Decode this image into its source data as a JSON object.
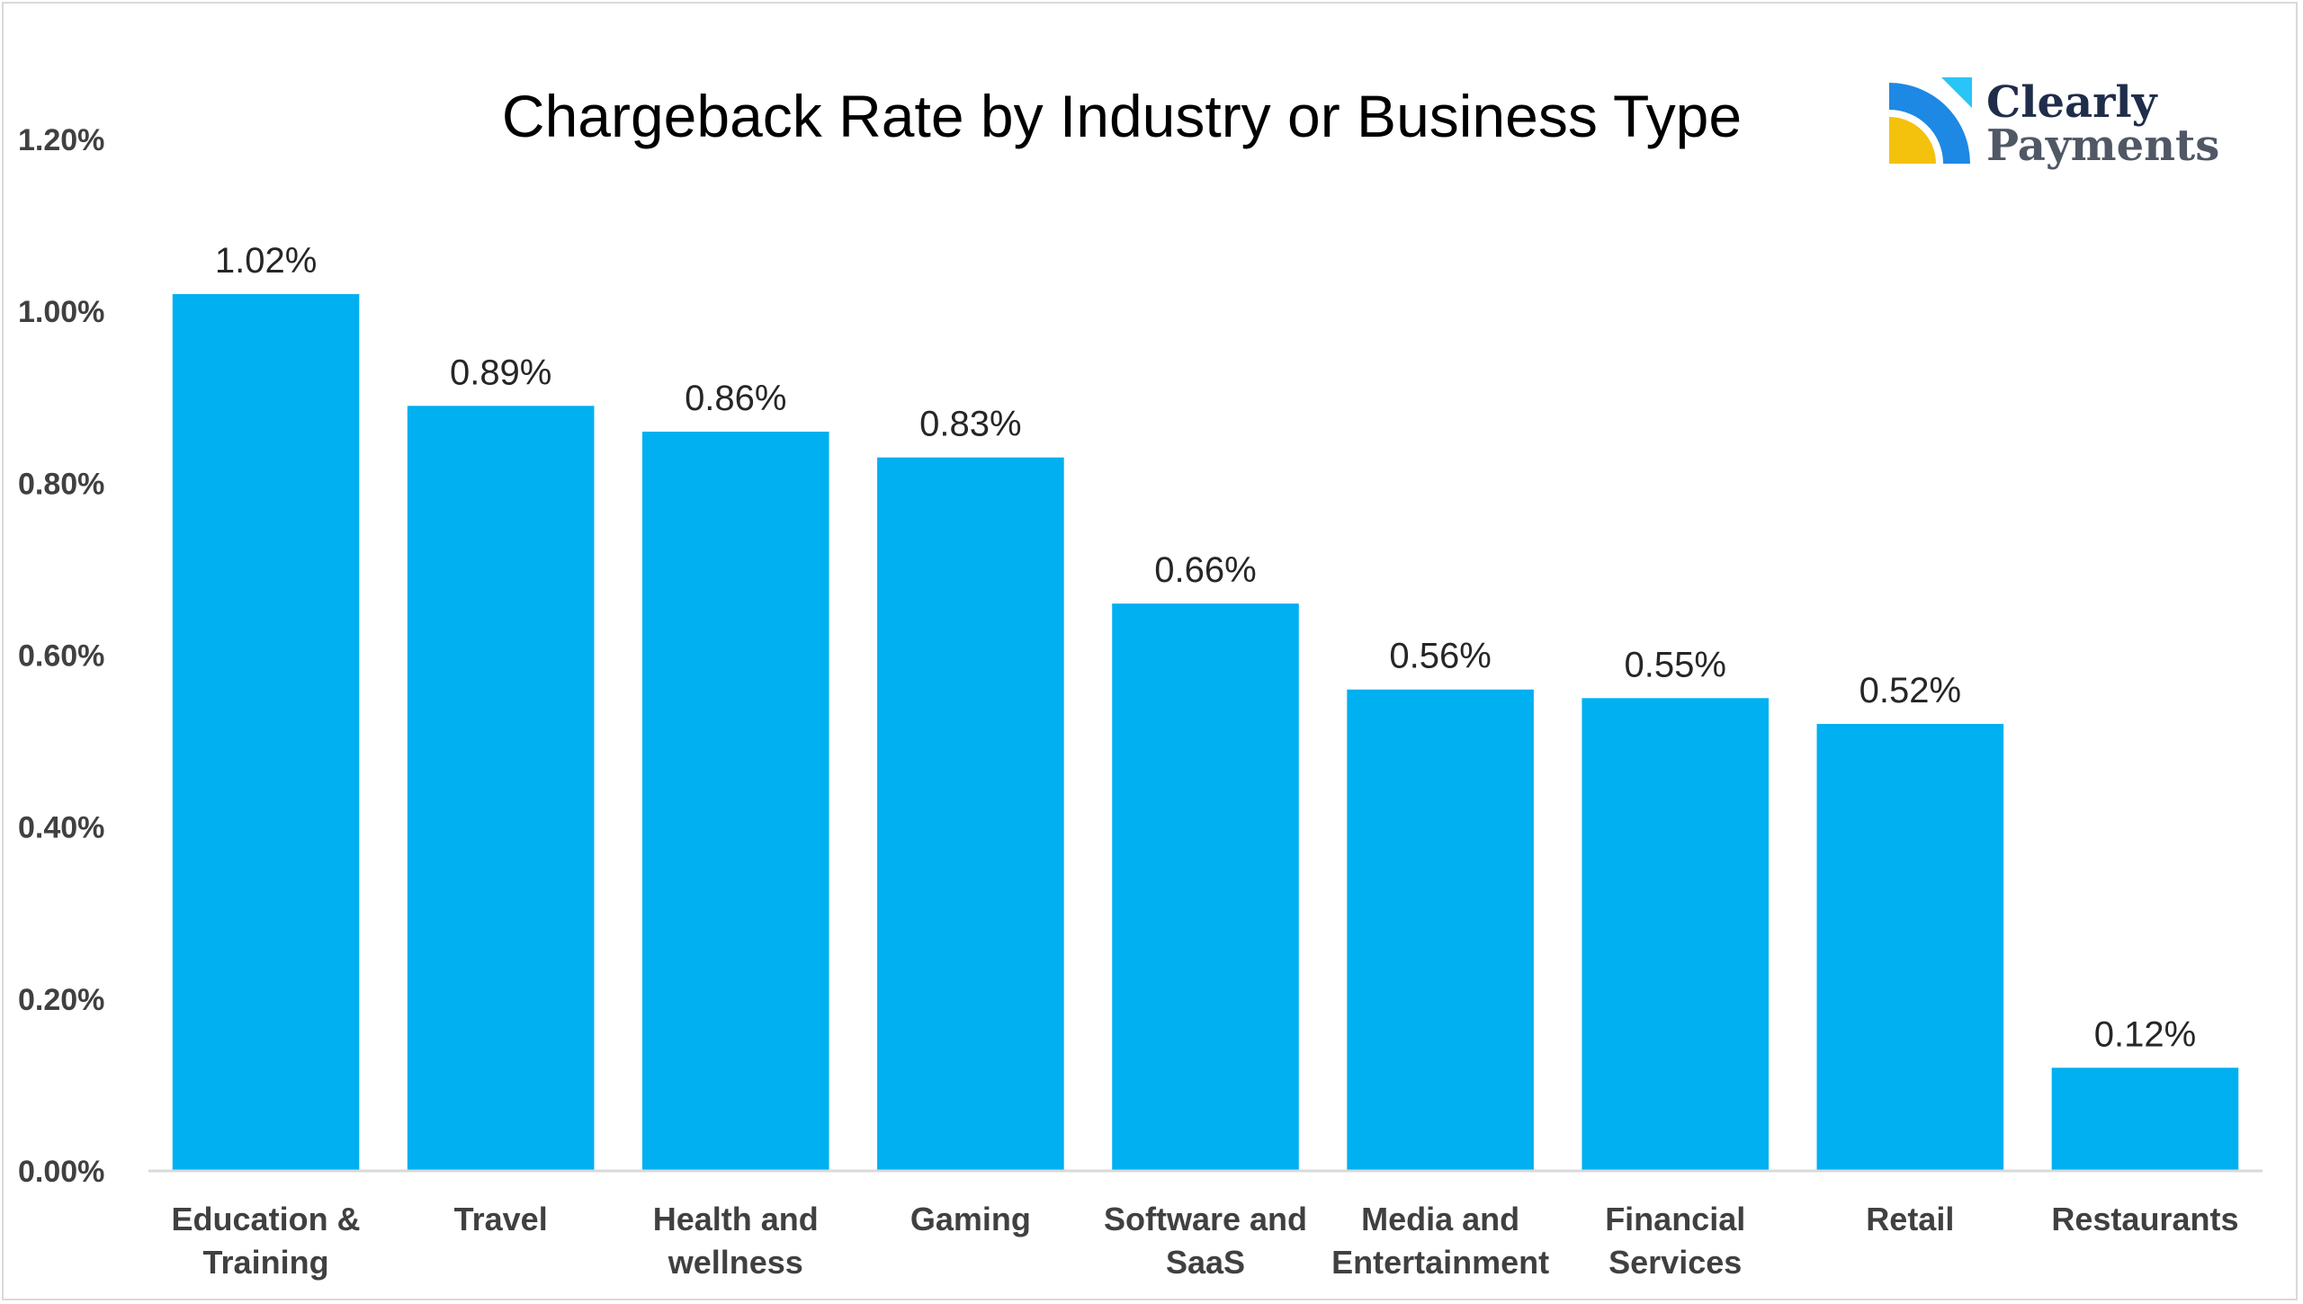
{
  "chart_data": {
    "type": "bar",
    "title": "Chargeback Rate by Industry or Business Type",
    "categories": [
      [
        "Education &",
        "Training"
      ],
      [
        "Travel"
      ],
      [
        "Health and",
        "wellness"
      ],
      [
        "Gaming"
      ],
      [
        "Software and",
        "SaaS"
      ],
      [
        "Media and",
        "Entertainment"
      ],
      [
        "Financial",
        "Services"
      ],
      [
        "Retail"
      ],
      [
        "Restaurants"
      ]
    ],
    "values": [
      1.02,
      0.89,
      0.86,
      0.83,
      0.66,
      0.56,
      0.55,
      0.52,
      0.12
    ],
    "data_labels": [
      "1.02%",
      "0.89%",
      "0.86%",
      "0.83%",
      "0.66%",
      "0.56%",
      "0.55%",
      "0.52%",
      "0.12%"
    ],
    "y_ticks": [
      0,
      0.2,
      0.4,
      0.6,
      0.8,
      1.0,
      1.2
    ],
    "y_tick_labels": [
      "0.00%",
      "0.20%",
      "0.40%",
      "0.60%",
      "0.80%",
      "1.00%",
      "1.20%"
    ],
    "ylim": [
      0,
      1.2
    ],
    "xlabel": "",
    "ylabel": "",
    "grid": false,
    "legend": "none",
    "bar_color": "#00b0f0"
  },
  "logo": {
    "line1": "Clearly",
    "line2": "Payments",
    "colors": {
      "blue": "#1e88e5",
      "cyan": "#29c5f6",
      "yellow": "#f4c20d"
    }
  }
}
